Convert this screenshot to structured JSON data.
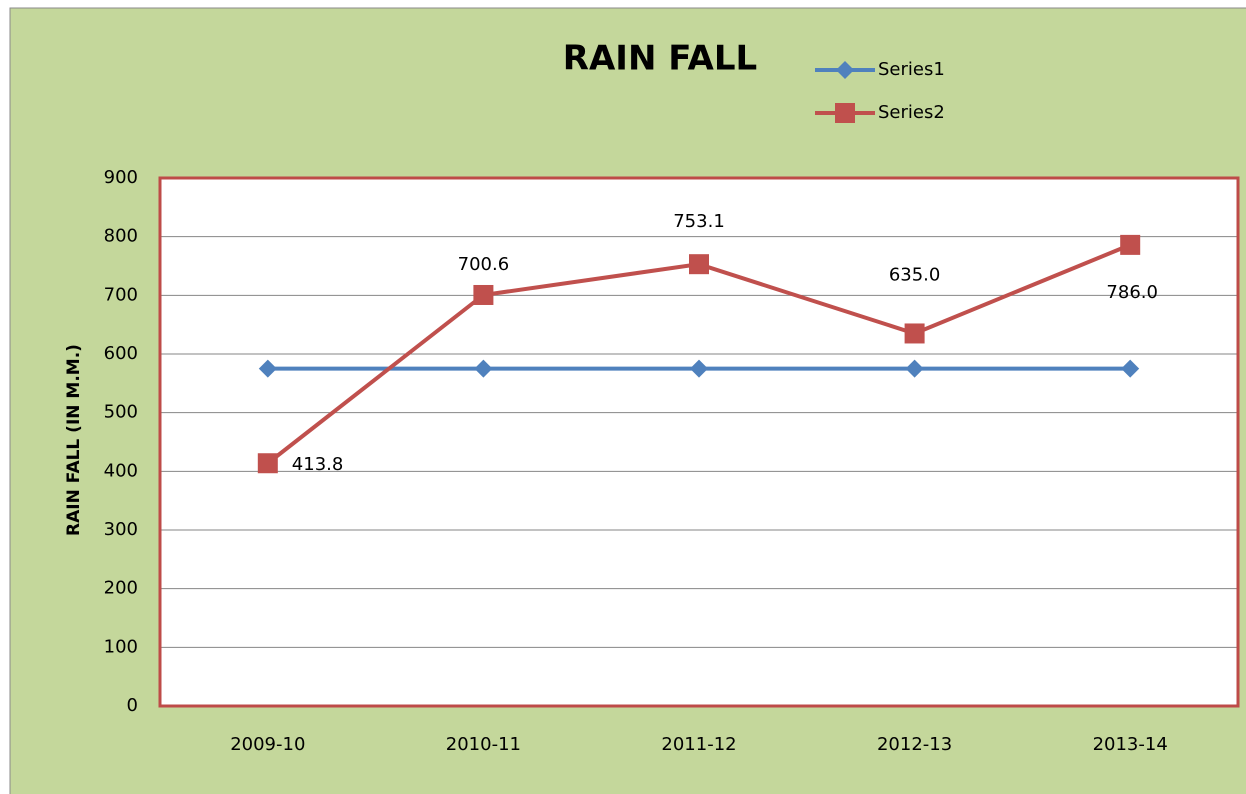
{
  "chart_data": {
    "type": "line",
    "title": "RAIN FALL",
    "ylabel": "RAIN FALL (IN M.M.)",
    "categories": [
      "2009-10",
      "2010-11",
      "2011-12",
      "2012-13",
      "2013-14"
    ],
    "series": [
      {
        "name": "Series1",
        "color": "#4f81bd",
        "marker": "diamond",
        "values": [
          575,
          575,
          575,
          575,
          575
        ]
      },
      {
        "name": "Series2",
        "color": "#c0504d",
        "marker": "square",
        "values": [
          413.8,
          700.6,
          753.1,
          635.0,
          786.0
        ],
        "value_labels": [
          "413.8",
          "700.6",
          "753.1",
          "635.0",
          "786.0"
        ]
      }
    ],
    "ylim": [
      0,
      900
    ],
    "yticks": [
      0,
      100,
      200,
      300,
      400,
      500,
      600,
      700,
      800,
      900
    ],
    "grid": true
  }
}
